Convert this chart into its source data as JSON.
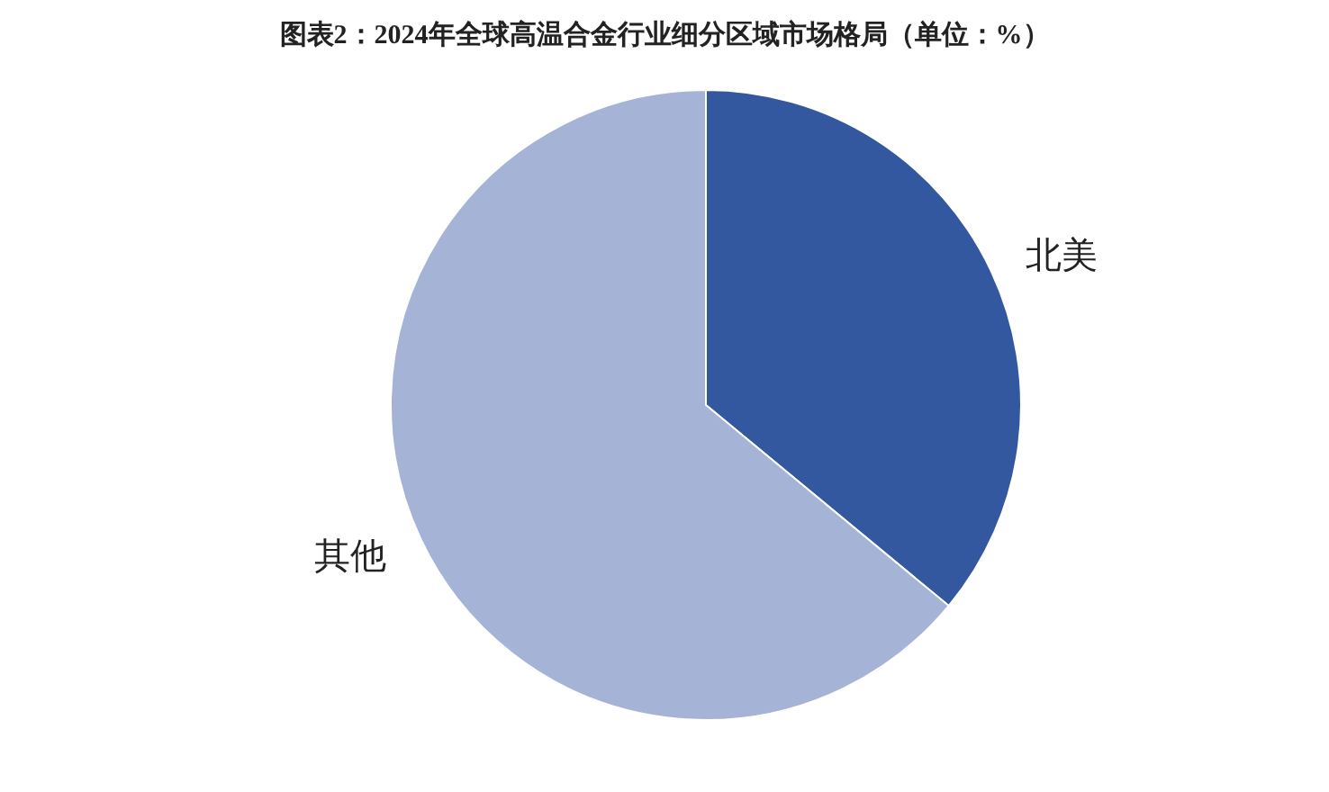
{
  "chart_data": {
    "type": "pie",
    "title": "图表2：2024年全球高温合金行业细分区域市场格局（单位：%）",
    "categories": [
      "北美",
      "其他"
    ],
    "values": [
      36,
      64
    ],
    "colors": [
      "#34589f",
      "#a5b3d6"
    ]
  }
}
